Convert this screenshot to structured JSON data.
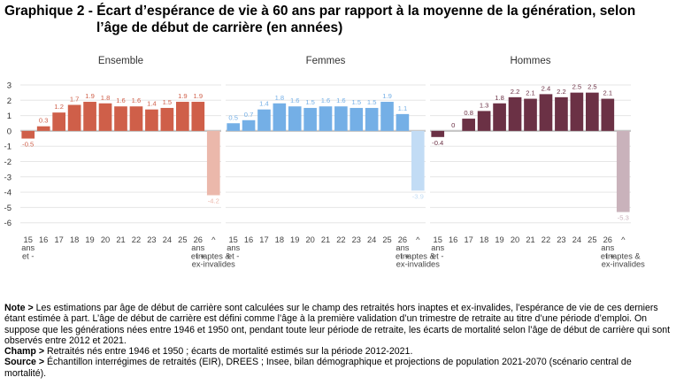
{
  "title": {
    "line1": "Graphique 2 - Écart d’espérance de vie à 60 ans par rapport à la moyenne de la génération, selon",
    "line2": "l’âge de début de carrière (en années)"
  },
  "chart_data": {
    "type": "bar",
    "y_ticks": [
      3,
      2,
      1,
      0,
      -1,
      -2,
      -3,
      -4,
      -5,
      -6
    ],
    "ylim": [
      -6,
      3
    ],
    "x_tick_labels": [
      "15\nans\net -",
      "16",
      "17",
      "18",
      "19",
      "20",
      "21",
      "22",
      "23",
      "24",
      "25",
      "26\nans\net +",
      "^\n\ninaptes &\nex-invalides"
    ],
    "panels": [
      {
        "name": "Ensemble",
        "color": "#cf5f49",
        "color_light": "#ebb8ab",
        "values": [
          -0.5,
          0.3,
          1.2,
          1.7,
          1.9,
          1.8,
          1.6,
          1.6,
          1.4,
          1.5,
          1.9,
          1.9,
          -4.2
        ],
        "labels": [
          "-0.5",
          "0.3",
          "1.2",
          "1.7",
          "1.9",
          "1.8",
          "1.6",
          "1.6",
          "1.4",
          "1.5",
          "1.9",
          "1.9",
          "-4.2"
        ]
      },
      {
        "name": "Femmes",
        "color": "#74afe6",
        "color_light": "#c2dcf5",
        "values": [
          0.5,
          0.7,
          1.4,
          1.8,
          1.6,
          1.5,
          1.6,
          1.6,
          1.5,
          1.5,
          1.9,
          1.1,
          -3.9
        ],
        "labels": [
          "0.5",
          "0.7",
          "1.4",
          "1.8",
          "1.6",
          "1.5",
          "1.6",
          "1.6",
          "1.5",
          "1.5",
          "1.9",
          "1.1",
          "-3.9"
        ]
      },
      {
        "name": "Hommes",
        "color": "#6b3145",
        "color_light": "#c9b2bb",
        "values": [
          -0.4,
          0,
          0.8,
          1.3,
          1.8,
          2.2,
          2.1,
          2.4,
          2.2,
          2.5,
          2.5,
          2.1,
          -5.3
        ],
        "labels": [
          "-0.4",
          "0",
          "0.8",
          "1.3",
          "1.8",
          "2.2",
          "2.1",
          "2.4",
          "2.2",
          "2.5",
          "2.5",
          "2.1",
          "-5.3"
        ]
      }
    ],
    "grid": true
  },
  "notes": {
    "note_label": "Note >",
    "note_text": " Les estimations par âge de début de carrière sont calculées sur le champ des retraités hors inaptes et ex-invalides, l’espérance de vie de ces derniers étant estimée à part. L’âge de début de carrière est défini comme l’âge à la première validation d’un trimestre de retraite au titre d’une période d’emploi. On suppose que les générations nées entre 1946 et 1950 ont, pendant toute leur période de retraite, les écarts de mortalité selon l’âge de début de carrière qui sont observés entre 2012 et 2021.",
    "champ_label": "Champ >",
    "champ_text": " Retraités nés entre 1946 et 1950 ; écarts de mortalité estimés sur la période 2012-2021.",
    "source_label": "Source >",
    "source_text": " Échantillon interrégimes de retraités (EIR), DREES ; Insee, bilan démographique et projections de population 2021-2070 (scénario central de mortalité)."
  }
}
